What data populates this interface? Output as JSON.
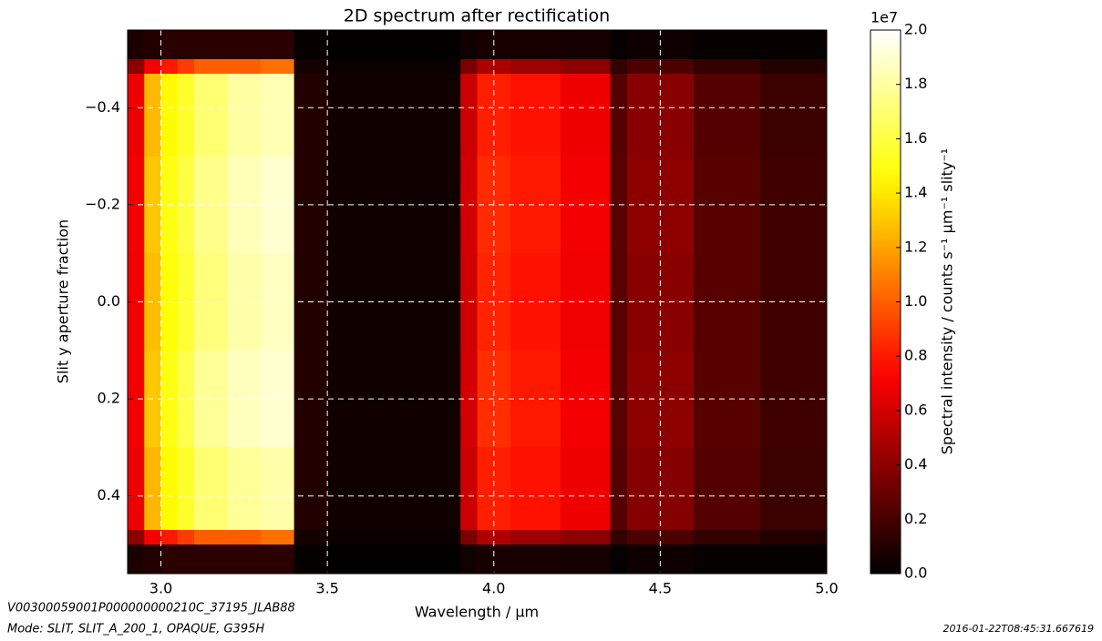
{
  "chart_data": {
    "type": "heatmap",
    "title": "2D spectrum after rectification",
    "xlabel": "Wavelength / μm",
    "ylabel": "Slit y aperture fraction",
    "colorbar_label": "Spectral intensity / counts s⁻¹ μm⁻¹ slity⁻¹",
    "colorbar_offset": "1e7",
    "colormap": "hot",
    "clim": [
      0,
      2.0
    ],
    "cticks": [
      {
        "value": 0,
        "label": "0.0"
      },
      0.2,
      0.4,
      0.6,
      0.8,
      {
        "value": 1,
        "label": "1.0"
      },
      1.2,
      1.4,
      1.6,
      1.8,
      {
        "value": 2,
        "label": "2.0"
      }
    ],
    "xlim": [
      2.9,
      5.0
    ],
    "xticks": [
      {
        "value": 3,
        "label": "3.0"
      },
      3.5,
      {
        "value": 4,
        "label": "4.0"
      },
      4.5,
      {
        "value": 5,
        "label": "5.0"
      }
    ],
    "ylim": [
      -0.56,
      0.56
    ],
    "invert_y": true,
    "yticks": [
      {
        "value": -0.4,
        "label": "−0.4"
      },
      {
        "value": -0.2,
        "label": "−0.2"
      },
      {
        "value": 0,
        "label": "0.0"
      },
      0.2,
      0.4
    ],
    "grid": true,
    "x_edges": [
      2.9,
      2.95,
      3.0,
      3.05,
      3.1,
      3.2,
      3.3,
      3.4,
      3.5,
      3.9,
      3.95,
      4.05,
      4.2,
      4.35,
      4.4,
      4.6,
      4.8,
      5.0
    ],
    "y_edges": [
      -0.56,
      -0.5,
      -0.47,
      -0.3,
      -0.1,
      0.1,
      0.3,
      0.47,
      0.5,
      0.56
    ],
    "z": [
      [
        0.08,
        0.1,
        0.12,
        0.12,
        0.12,
        0.12,
        0.12,
        0.02,
        0.01,
        0.05,
        0.07,
        0.07,
        0.06,
        0.02,
        0.04,
        0.02,
        0.02
      ],
      [
        0.4,
        0.7,
        0.8,
        0.9,
        1.0,
        1.0,
        1.05,
        0.06,
        0.03,
        0.35,
        0.5,
        0.45,
        0.4,
        0.15,
        0.22,
        0.15,
        0.1
      ],
      [
        0.68,
        1.26,
        1.45,
        1.55,
        1.7,
        1.8,
        1.84,
        0.1,
        0.05,
        0.58,
        0.82,
        0.78,
        0.68,
        0.24,
        0.39,
        0.24,
        0.17
      ],
      [
        0.7,
        1.3,
        1.5,
        1.6,
        1.75,
        1.85,
        1.9,
        0.1,
        0.05,
        0.6,
        0.85,
        0.8,
        0.7,
        0.25,
        0.4,
        0.25,
        0.18
      ],
      [
        0.69,
        1.27,
        1.47,
        1.57,
        1.72,
        1.82,
        1.87,
        0.1,
        0.05,
        0.59,
        0.83,
        0.78,
        0.69,
        0.25,
        0.39,
        0.25,
        0.18
      ],
      [
        0.7,
        1.3,
        1.5,
        1.62,
        1.78,
        1.86,
        1.9,
        0.1,
        0.05,
        0.6,
        0.86,
        0.8,
        0.7,
        0.25,
        0.4,
        0.25,
        0.18
      ],
      [
        0.68,
        1.25,
        1.45,
        1.55,
        1.7,
        1.78,
        1.82,
        0.1,
        0.05,
        0.58,
        0.82,
        0.78,
        0.68,
        0.24,
        0.38,
        0.24,
        0.17
      ],
      [
        0.4,
        0.7,
        0.8,
        0.9,
        1.0,
        1.0,
        1.05,
        0.06,
        0.03,
        0.35,
        0.5,
        0.45,
        0.4,
        0.15,
        0.22,
        0.15,
        0.1
      ],
      [
        0.08,
        0.1,
        0.12,
        0.12,
        0.12,
        0.12,
        0.12,
        0.02,
        0.01,
        0.05,
        0.07,
        0.07,
        0.06,
        0.02,
        0.04,
        0.02,
        0.02
      ]
    ]
  },
  "footer": {
    "file_id": "V00300059001P000000000210C_37195_JLAB88",
    "mode": "Mode: SLIT, SLIT_A_200_1, OPAQUE, G395H",
    "timestamp": "2016-01-22T08:45:31.667619"
  }
}
